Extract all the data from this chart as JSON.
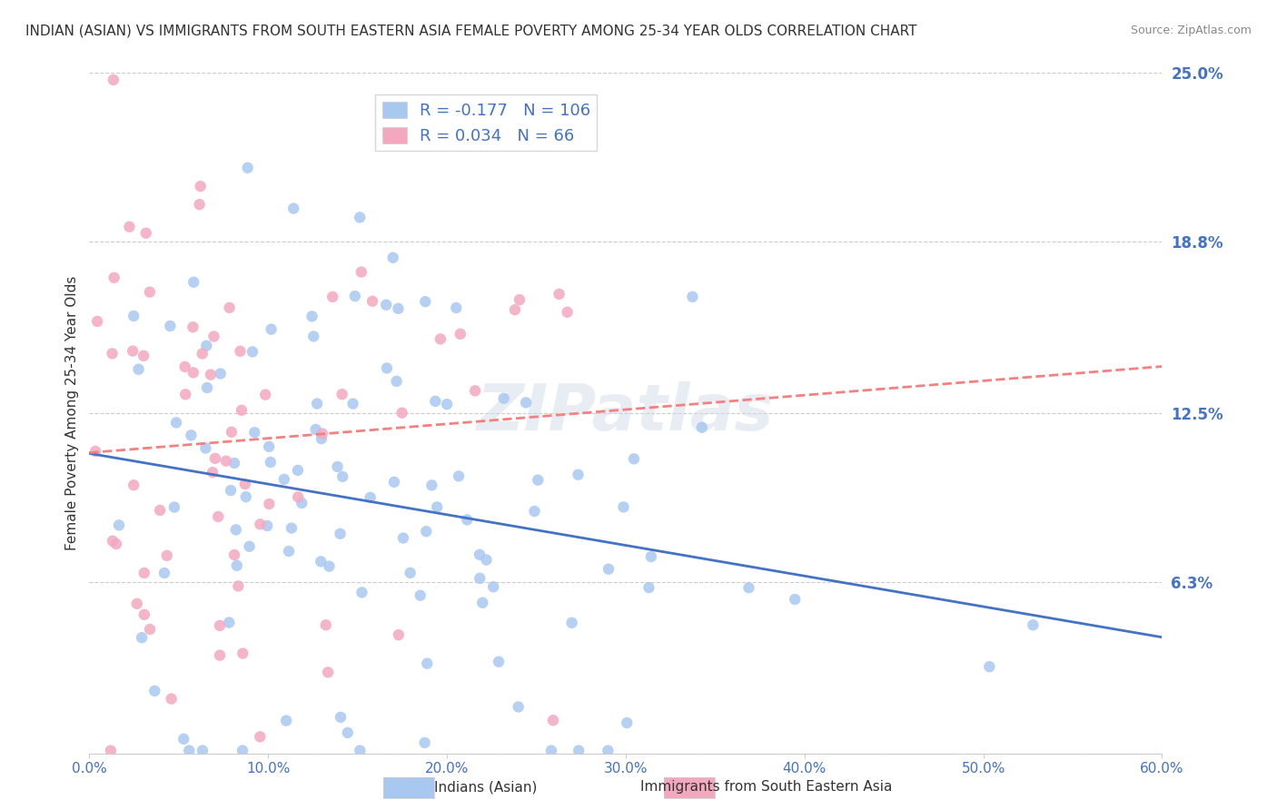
{
  "title": "INDIAN (ASIAN) VS IMMIGRANTS FROM SOUTH EASTERN ASIA FEMALE POVERTY AMONG 25-34 YEAR OLDS CORRELATION CHART",
  "source": "Source: ZipAtlas.com",
  "ylabel": "Female Poverty Among 25-34 Year Olds",
  "xlabel": "",
  "series1_label": "Indians (Asian)",
  "series2_label": "Immigrants from South Eastern Asia",
  "series1_color": "#a8c8f0",
  "series2_color": "#f4a8c0",
  "series1_line_color": "#4472c4",
  "series2_line_color": "#f48080",
  "R1": -0.177,
  "N1": 106,
  "R2": 0.034,
  "N2": 66,
  "xlim": [
    0.0,
    0.6
  ],
  "ylim": [
    0.0,
    0.25
  ],
  "yticks": [
    0.0,
    0.063,
    0.125,
    0.188,
    0.25
  ],
  "ytick_labels": [
    "",
    "6.3%",
    "12.5%",
    "18.8%",
    "25.0%"
  ],
  "xticks": [
    0.0,
    0.1,
    0.2,
    0.3,
    0.4,
    0.5,
    0.6
  ],
  "xtick_labels": [
    "0.0%",
    "10.0%",
    "20.0%",
    "30.0%",
    "40.0%",
    "50.0%",
    "60.0%"
  ],
  "watermark": "ZIPatlas",
  "background_color": "#ffffff",
  "grid_color": "#cccccc",
  "title_color": "#333333",
  "axis_label_color": "#4472c4",
  "seed1": 42,
  "seed2": 123
}
